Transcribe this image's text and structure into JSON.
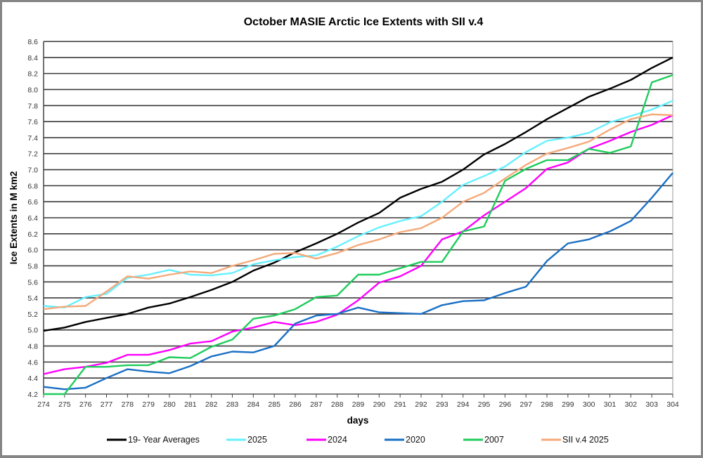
{
  "chart_data": {
    "type": "line",
    "title": "October MASIE Arctic Ice Extents with SII v.4",
    "xlabel": "days",
    "ylabel": "Ice Extents in M km2",
    "xlim": [
      274,
      304
    ],
    "ylim": [
      4.2,
      8.6
    ],
    "y_ticks": [
      "4.2",
      "4.4",
      "4.6",
      "4.8",
      "5.0",
      "5.2",
      "5.4",
      "5.6",
      "5.8",
      "6.0",
      "6.2",
      "6.4",
      "6.6",
      "6.8",
      "7.0",
      "7.2",
      "7.4",
      "7.6",
      "7.8",
      "8.0",
      "8.2",
      "8.4",
      "8.6"
    ],
    "x": [
      274,
      275,
      276,
      277,
      278,
      279,
      280,
      281,
      282,
      283,
      284,
      285,
      286,
      287,
      288,
      289,
      290,
      291,
      292,
      293,
      294,
      295,
      296,
      297,
      298,
      299,
      300,
      301,
      302,
      303,
      304
    ],
    "grid": "horizontal",
    "legend_position": "bottom",
    "series": [
      {
        "name": "19- Year Averages",
        "color": "#000000",
        "values": [
          4.99,
          5.03,
          5.1,
          5.15,
          5.2,
          5.28,
          5.33,
          5.41,
          5.5,
          5.6,
          5.74,
          5.84,
          5.97,
          6.08,
          6.2,
          6.34,
          6.46,
          6.65,
          6.76,
          6.85,
          7.0,
          7.19,
          7.32,
          7.47,
          7.63,
          7.77,
          7.91,
          8.01,
          8.12,
          8.27,
          8.4
        ]
      },
      {
        "name": "2025",
        "color": "#66f0ff",
        "values": [
          5.3,
          5.28,
          5.41,
          5.45,
          5.65,
          5.69,
          5.75,
          5.69,
          5.68,
          5.71,
          5.82,
          5.87,
          5.91,
          5.93,
          6.04,
          6.17,
          6.28,
          6.36,
          6.42,
          6.6,
          6.81,
          6.92,
          7.04,
          7.22,
          7.36,
          7.4,
          7.46,
          7.59,
          7.67,
          7.75,
          7.86
        ]
      },
      {
        "name": "2024",
        "color": "#ff00ff",
        "values": [
          4.45,
          4.51,
          4.54,
          4.59,
          4.69,
          4.69,
          4.75,
          4.83,
          4.86,
          4.98,
          5.03,
          5.1,
          5.06,
          5.1,
          5.19,
          5.37,
          5.59,
          5.67,
          5.8,
          6.13,
          6.23,
          6.43,
          6.6,
          6.77,
          7.01,
          7.09,
          7.26,
          7.36,
          7.47,
          7.56,
          7.68
        ]
      },
      {
        "name": "2020",
        "color": "#1a6fc4",
        "values": [
          4.29,
          4.26,
          4.28,
          4.4,
          4.51,
          4.48,
          4.46,
          4.55,
          4.67,
          4.73,
          4.72,
          4.8,
          5.08,
          5.18,
          5.2,
          5.28,
          5.22,
          5.21,
          5.2,
          5.31,
          5.36,
          5.37,
          5.46,
          5.54,
          5.86,
          6.08,
          6.13,
          6.23,
          6.36,
          6.65,
          6.96
        ]
      },
      {
        "name": "2007",
        "color": "#1fcc5c",
        "values": [
          4.2,
          4.2,
          4.54,
          4.54,
          4.56,
          4.56,
          4.66,
          4.65,
          4.79,
          4.88,
          5.14,
          5.18,
          5.26,
          5.41,
          5.43,
          5.69,
          5.69,
          5.77,
          5.85,
          5.85,
          6.23,
          6.29,
          6.86,
          7.01,
          7.12,
          7.12,
          7.26,
          7.21,
          7.29,
          8.09,
          8.18
        ]
      },
      {
        "name": "SII v.4 2025",
        "color": "#f5a97a",
        "values": [
          5.26,
          5.29,
          5.3,
          5.48,
          5.67,
          5.64,
          5.69,
          5.73,
          5.71,
          5.8,
          5.87,
          5.95,
          5.96,
          5.89,
          5.96,
          6.06,
          6.13,
          6.22,
          6.27,
          6.4,
          6.6,
          6.71,
          6.89,
          7.06,
          7.2,
          7.27,
          7.35,
          7.5,
          7.63,
          7.69,
          7.68
        ]
      }
    ]
  }
}
